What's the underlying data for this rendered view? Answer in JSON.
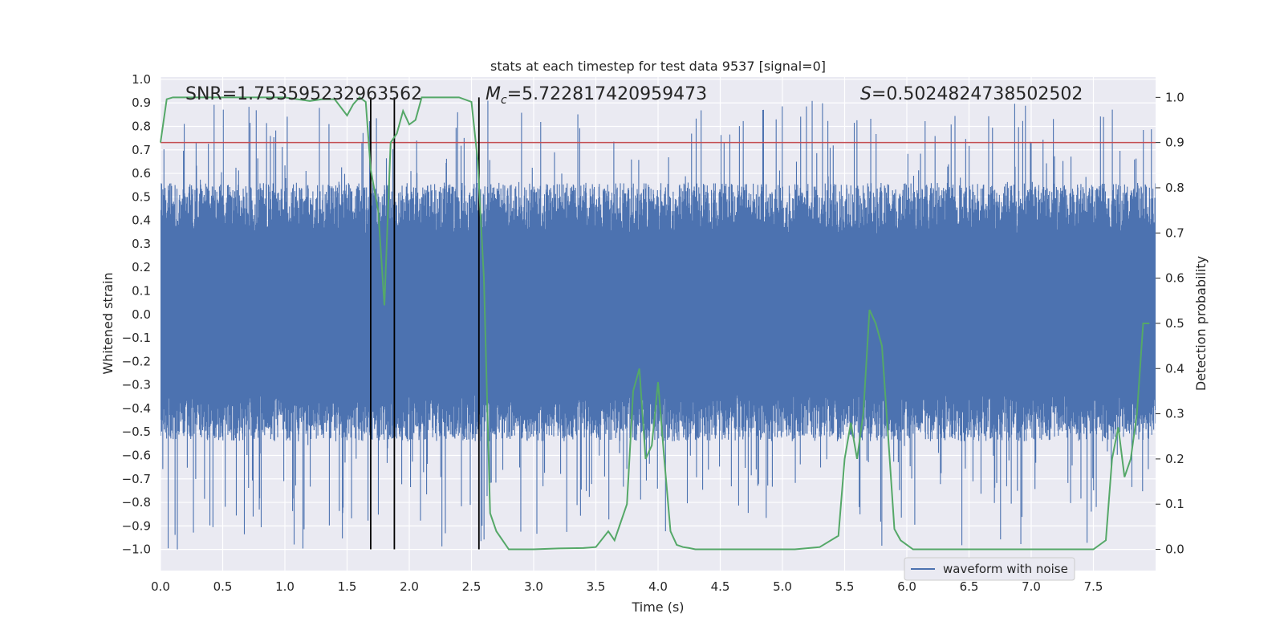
{
  "chart_data": {
    "type": "line",
    "title": "stats at each timestep for test data 9537 [signal=0]",
    "xlabel": "Time (s)",
    "ylabel": "Whitened strain",
    "y2label": "Detection probability",
    "xlim": [
      0.0,
      8.0
    ],
    "ylim": [
      -1.09,
      1.01
    ],
    "y2lim": [
      -0.047,
      1.045
    ],
    "x_ticks": [
      0.0,
      0.5,
      1.0,
      1.5,
      2.0,
      2.5,
      3.0,
      3.5,
      4.0,
      4.5,
      5.0,
      5.5,
      6.0,
      6.5,
      7.0,
      7.5
    ],
    "x_tick_labels": [
      "0.0",
      "0.5",
      "1.0",
      "1.5",
      "2.0",
      "2.5",
      "3.0",
      "3.5",
      "4.0",
      "4.5",
      "5.0",
      "5.5",
      "6.0",
      "6.5",
      "7.0",
      "7.5"
    ],
    "y_ticks": [
      1.0,
      0.9,
      0.8,
      0.7,
      0.6,
      0.5,
      0.4,
      0.3,
      0.2,
      0.1,
      0.0,
      -0.1,
      -0.2,
      -0.3,
      -0.4,
      -0.5,
      -0.6,
      -0.7,
      -0.8,
      -0.9,
      -1.0
    ],
    "y_tick_labels": [
      "1.0",
      "0.9",
      "0.8",
      "0.7",
      "0.6",
      "0.5",
      "0.4",
      "0.3",
      "0.2",
      "0.1",
      "0.0",
      "−0.1",
      "−0.2",
      "−0.3",
      "−0.4",
      "−0.5",
      "−0.6",
      "−0.7",
      "−0.8",
      "−0.9",
      "−1.0"
    ],
    "y2_ticks": [
      1.0,
      0.9,
      0.8,
      0.7,
      0.6,
      0.5,
      0.4,
      0.3,
      0.2,
      0.1,
      0.0
    ],
    "y2_tick_labels": [
      "1.0",
      "0.9",
      "0.8",
      "0.7",
      "0.6",
      "0.5",
      "0.4",
      "0.3",
      "0.2",
      "0.1",
      "0.0"
    ],
    "grid": true,
    "legend_position": "bottom-right",
    "annotations": {
      "snr": "SNR=1.753595232963562",
      "mc_symbol": "M",
      "mc_sub": "c",
      "mc_value": "=5.722817420959473",
      "s_symbol": "S",
      "s_value": "=0.5024824738502502"
    },
    "threshold": {
      "y2": 0.9,
      "color": "#c44e52"
    },
    "vertical_lines_x": [
      1.69,
      1.88,
      2.56
    ],
    "series": [
      {
        "name": "waveform with noise",
        "axis": "left",
        "color": "#4c72b0",
        "kind": "noise",
        "x_range": [
          0.0,
          8.0
        ],
        "amplitude_bulk": 0.34,
        "amplitude_peak_max": 0.91,
        "amplitude_trough_min": -1.0
      },
      {
        "name": "",
        "axis": "right",
        "color": "#55a868",
        "kind": "probability",
        "x": [
          0.0,
          0.05,
          0.1,
          0.2,
          0.3,
          0.4,
          0.5,
          0.6,
          0.7,
          0.8,
          0.9,
          1.0,
          1.1,
          1.2,
          1.3,
          1.4,
          1.5,
          1.55,
          1.6,
          1.65,
          1.69,
          1.75,
          1.8,
          1.85,
          1.9,
          1.95,
          2.0,
          2.05,
          2.1,
          2.15,
          2.2,
          2.3,
          2.4,
          2.5,
          2.55,
          2.6,
          2.65,
          2.7,
          2.8,
          2.9,
          3.0,
          3.2,
          3.4,
          3.5,
          3.6,
          3.65,
          3.7,
          3.75,
          3.8,
          3.85,
          3.9,
          3.95,
          4.0,
          4.05,
          4.1,
          4.15,
          4.2,
          4.25,
          4.3,
          4.5,
          4.7,
          4.9,
          5.1,
          5.3,
          5.45,
          5.5,
          5.55,
          5.6,
          5.65,
          5.7,
          5.75,
          5.8,
          5.85,
          5.9,
          5.95,
          6.0,
          6.05,
          6.1,
          6.2,
          6.3,
          6.5,
          6.7,
          6.9,
          7.1,
          7.3,
          7.5,
          7.6,
          7.65,
          7.7,
          7.75,
          7.8,
          7.85,
          7.9,
          7.95
        ],
        "y": [
          0.9,
          0.996,
          1.0,
          1.0,
          1.0,
          1.0,
          1.0,
          1.0,
          1.0,
          1.0,
          1.0,
          1.0,
          0.996,
          0.992,
          0.996,
          0.996,
          0.96,
          0.985,
          1.0,
          0.99,
          0.84,
          0.75,
          0.54,
          0.9,
          0.92,
          0.97,
          0.94,
          0.95,
          1.0,
          1.0,
          1.0,
          1.0,
          1.0,
          0.99,
          0.86,
          0.6,
          0.08,
          0.04,
          0.0,
          0.0,
          0.0,
          0.002,
          0.003,
          0.005,
          0.04,
          0.02,
          0.06,
          0.1,
          0.35,
          0.4,
          0.2,
          0.23,
          0.37,
          0.2,
          0.04,
          0.01,
          0.005,
          0.003,
          0.0,
          0.0,
          0.0,
          0.0,
          0.0,
          0.005,
          0.03,
          0.2,
          0.28,
          0.2,
          0.3,
          0.53,
          0.5,
          0.45,
          0.25,
          0.045,
          0.02,
          0.01,
          0.0,
          0.0,
          0.0,
          0.0,
          0.0,
          0.0,
          0.0,
          0.0,
          0.0,
          0.0,
          0.02,
          0.2,
          0.27,
          0.16,
          0.2,
          0.3,
          0.5,
          0.5
        ]
      }
    ]
  }
}
